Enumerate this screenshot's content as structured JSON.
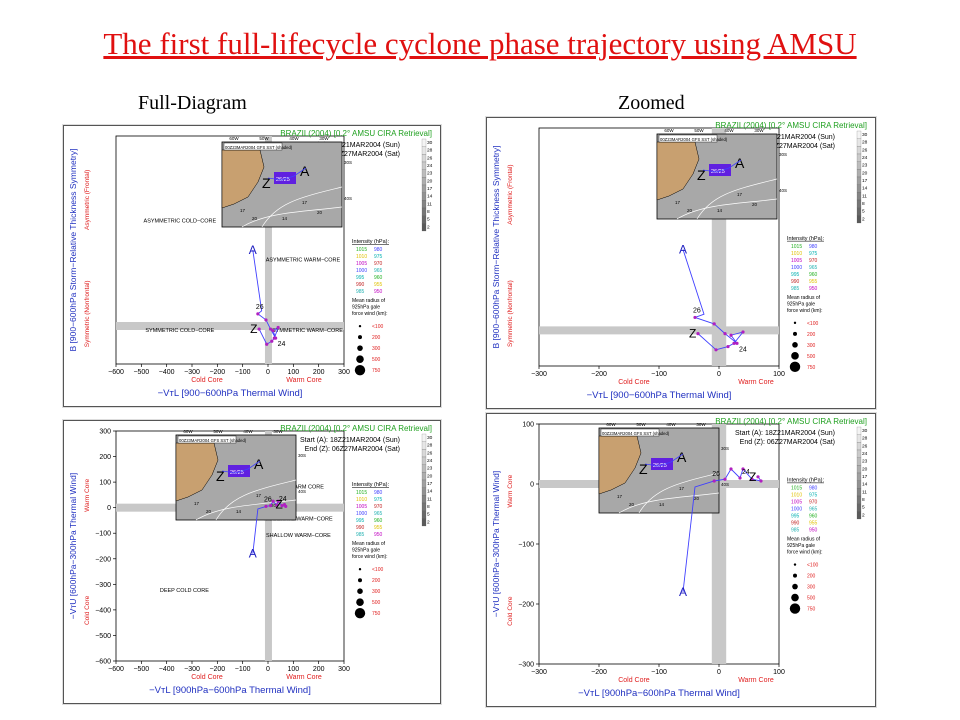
{
  "slide": {
    "title": "The first full-lifecycle cyclone phase trajectory using AMSU",
    "left_column_label": "Full-Diagram",
    "right_column_label": "Zoomed"
  },
  "common": {
    "panel_title": "BRAZIL(2004) [0.2° AMSU CIRA Retrieval]",
    "start": "Start (A): 18Z21MAR2004 (Sun)",
    "end": "End (Z): 06Z27MAR2004 (Sat)",
    "inset_title": "00Z23MAR2004 GFS SST (shaded)",
    "inset_lon_ticks": [
      "60W",
      "50W",
      "40W",
      "30W"
    ],
    "inset_lat_ticks": [
      "30S",
      "40S"
    ],
    "inset_contours": [
      "17",
      "20",
      "14",
      "17",
      "20"
    ],
    "inset_label": "26/25",
    "colorbar": [
      "30",
      "28",
      "26",
      "24",
      "23",
      "20",
      "17",
      "14",
      "11",
      "8",
      "5",
      "2"
    ],
    "intensity_title": "Intensity (hPa):",
    "intensity_levels": [
      [
        "1015",
        "980"
      ],
      [
        "1010",
        "975"
      ],
      [
        "1005",
        "970"
      ],
      [
        "1000",
        "965"
      ],
      [
        "995",
        "960"
      ],
      [
        "990",
        "955"
      ],
      [
        "985",
        "950"
      ]
    ],
    "intensity_colors": [
      "#20b020",
      "#e0c000",
      "#c000c0",
      "#4040ff",
      "#00b0b0",
      "#c02020",
      "#20b0b0"
    ],
    "radius_title": [
      "Mean radius of",
      "925hPa gale",
      "force wind (km):"
    ],
    "radius_labels": [
      "<100",
      "200",
      "300",
      "500",
      "750"
    ],
    "cold_core": "Cold Core",
    "warm_core": "Warm Core"
  },
  "chart_data": [
    {
      "type": "scatter",
      "name_tag": "B vs -VTL full",
      "xlabel": "−VᴛL [900−600hPa Thermal Wind]",
      "ylabel": "B [900−600hPa Storm−Relative Thickness Symmetry]",
      "ylabel_top": "Asymmetric (Frontal)",
      "ylabel_bottom": "Symmetric (Nonfrontal)",
      "xlim": [
        -600,
        300
      ],
      "ylim": [
        -25,
        125
      ],
      "xticks": [
        "−600",
        "−500",
        "−400",
        "−300",
        "−200",
        "−100",
        "0",
        "100",
        "200",
        "300"
      ],
      "yticks": [],
      "quadrants": [
        "ASYMMETRIC COLD−CORE",
        "ASYMMETRIC WARM−CORE",
        "SYMMETRIC COLD−CORE",
        "SYMMETRIC WARM−CORE"
      ],
      "track_labels": [
        "A",
        "Z",
        "26",
        "24"
      ],
      "track": [
        [
          -60,
          50
        ],
        [
          -25,
          10
        ],
        [
          -40,
          8
        ],
        [
          -8,
          4
        ],
        [
          10,
          -2
        ],
        [
          30,
          -8
        ],
        [
          20,
          -3
        ],
        [
          40,
          -1
        ],
        [
          25,
          -8
        ],
        [
          15,
          -10
        ],
        [
          -5,
          -12
        ],
        [
          -35,
          -2
        ]
      ]
    },
    {
      "type": "scatter",
      "name_tag": "B vs -VTL zoomed",
      "xlabel": "−VᴛL [900−600hPa Thermal Wind]",
      "ylabel": "B [900−600hPa Storm−Relative Thickness Symmetry]",
      "ylabel_top": "Asymmetric (Frontal)",
      "ylabel_bottom": "Symmetric (Nonfrontal)",
      "xlim": [
        -300,
        100
      ],
      "ylim": [
        -22,
        125
      ],
      "xticks": [
        "−300",
        "−200",
        "−100",
        "0",
        "100"
      ],
      "yticks": [],
      "quadrants": [],
      "track_labels": [
        "A",
        "Z",
        "26",
        "24"
      ],
      "track": [
        [
          -60,
          50
        ],
        [
          -25,
          10
        ],
        [
          -40,
          8
        ],
        [
          -8,
          4
        ],
        [
          10,
          -2
        ],
        [
          30,
          -8
        ],
        [
          20,
          -3
        ],
        [
          40,
          -1
        ],
        [
          25,
          -8
        ],
        [
          15,
          -10
        ],
        [
          -5,
          -12
        ],
        [
          -35,
          -2
        ]
      ]
    },
    {
      "type": "scatter",
      "name_tag": "-VTU vs -VTL full",
      "xlabel": "−VᴛL [900hPa−600hPa Thermal Wind]",
      "ylabel": "−VᴛU [600hPa−300hPa Thermal Wind]",
      "ylabel_top": "Warm Core",
      "ylabel_bottom": "Cold Core",
      "xlim": [
        -600,
        300
      ],
      "ylim": [
        -600,
        300
      ],
      "xticks": [
        "−600",
        "−500",
        "−400",
        "−300",
        "−200",
        "−100",
        "0",
        "100",
        "200",
        "300"
      ],
      "yticks": [
        "300",
        "200",
        "100",
        "0",
        "−100",
        "−200",
        "−300",
        "−400",
        "−500",
        "−600"
      ],
      "quadrants": [
        "DEEP WARM CORE",
        "MODERATE WARM−CORE",
        "SHALLOW WARM−CORE",
        "DEEP COLD CORE"
      ],
      "track_labels": [
        "A",
        "Z",
        "26",
        "24"
      ],
      "track": [
        [
          -60,
          -180
        ],
        [
          -40,
          -5
        ],
        [
          -8,
          5
        ],
        [
          10,
          8
        ],
        [
          20,
          25
        ],
        [
          35,
          10
        ],
        [
          40,
          25
        ],
        [
          55,
          8
        ],
        [
          70,
          5
        ],
        [
          65,
          12
        ]
      ]
    },
    {
      "type": "scatter",
      "name_tag": "-VTU vs -VTL zoomed",
      "xlabel": "−VᴛL [900hPa−600hPa Thermal Wind]",
      "ylabel": "−VᴛU [600hPa−300hPa Thermal Wind]",
      "ylabel_top": "Warm Core",
      "ylabel_bottom": "Cold Core",
      "xlim": [
        -300,
        100
      ],
      "ylim": [
        -300,
        100
      ],
      "xticks": [
        "−300",
        "−200",
        "−100",
        "0",
        "100"
      ],
      "yticks": [
        "100",
        "0",
        "−100",
        "−200",
        "−300"
      ],
      "quadrants": [],
      "track_labels": [
        "A",
        "Z",
        "26",
        "24"
      ],
      "track": [
        [
          -60,
          -180
        ],
        [
          -40,
          -5
        ],
        [
          -8,
          5
        ],
        [
          10,
          8
        ],
        [
          20,
          25
        ],
        [
          35,
          10
        ],
        [
          40,
          25
        ],
        [
          55,
          8
        ],
        [
          70,
          5
        ],
        [
          65,
          12
        ]
      ]
    }
  ]
}
